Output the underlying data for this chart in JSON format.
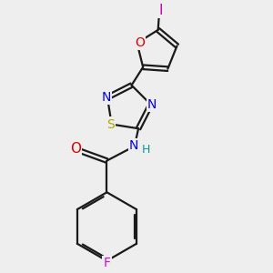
{
  "bg_color": "#eeeeee",
  "bond_color": "#1a1a1a",
  "bond_width": 1.6,
  "atom_colors": {
    "C": "#1a1a1a",
    "N": "#0000ee",
    "O": "#dd0000",
    "S": "#aaaa00",
    "F": "#dd00dd",
    "I": "#cc00aa",
    "H": "#009999"
  },
  "font_size": 9,
  "dbo": 0.032
}
